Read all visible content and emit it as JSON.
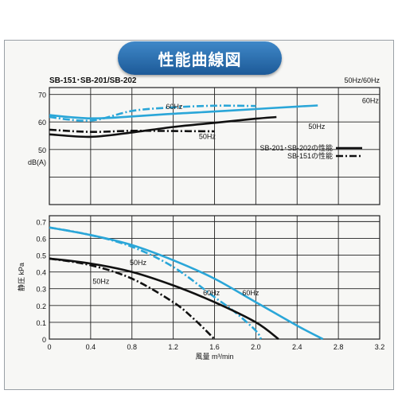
{
  "title": "性能曲線図",
  "model": "SB-151･SB-201/SB-202",
  "freq_note": "50Hz/60Hz",
  "colors": {
    "sb201_202": "#111111",
    "sb151": "#2aa6d8",
    "grid": "#222222",
    "title_bg": "#2e74b5"
  },
  "chart_data": [
    {
      "type": "line",
      "ylabel": "dB(A)",
      "ylim": [
        50,
        70
      ],
      "yticks": [
        50,
        60,
        70
      ],
      "xlim": [
        0,
        3.2
      ],
      "grid": true,
      "legend_position": "right",
      "legend": [
        {
          "label": "SB-201･SB-202の性能",
          "style": "solid",
          "color": "#111111"
        },
        {
          "label": "SB-151の性能",
          "style": "dash-dot",
          "color": "#111111"
        }
      ],
      "annotations": [
        {
          "text": "60Hz",
          "x": 1.21,
          "y": 64.7
        },
        {
          "text": "60Hz",
          "x": 3.11,
          "y": 66.8
        },
        {
          "text": "50Hz",
          "x": 2.59,
          "y": 57.4
        },
        {
          "text": "50Hz",
          "x": 1.53,
          "y": 53.8
        }
      ],
      "series": [
        {
          "model": "SB-201･SB-202",
          "hz": "60Hz",
          "style": "solid",
          "color": "#2aa6d8",
          "x": [
            0,
            0.4,
            0.8,
            1.2,
            1.6,
            2.0,
            2.4,
            2.6
          ],
          "y": [
            62.5,
            61.3,
            62.0,
            63.0,
            63.8,
            64.7,
            65.6,
            66.0
          ]
        },
        {
          "model": "SB-151",
          "hz": "60Hz",
          "style": "dash-dot",
          "color": "#2aa6d8",
          "x": [
            0,
            0.4,
            0.8,
            1.2,
            1.6,
            2.0
          ],
          "y": [
            61.8,
            60.5,
            64.0,
            65.3,
            65.9,
            65.8
          ]
        },
        {
          "model": "SB-201･SB-202",
          "hz": "50Hz",
          "style": "solid",
          "color": "#111111",
          "x": [
            0,
            0.4,
            0.8,
            1.2,
            1.6,
            2.0,
            2.2
          ],
          "y": [
            55.5,
            54.6,
            56.2,
            58.2,
            59.7,
            61.2,
            61.8
          ]
        },
        {
          "model": "SB-151",
          "hz": "50Hz",
          "style": "dash-dot",
          "color": "#111111",
          "x": [
            0,
            0.4,
            0.8,
            1.2,
            1.6
          ],
          "y": [
            57.2,
            56.4,
            56.8,
            56.7,
            56.6
          ]
        }
      ]
    },
    {
      "type": "line",
      "xlabel": "風量 m³/min",
      "ylabel": "静圧 kPa",
      "xlim": [
        0,
        3.2
      ],
      "xticks": [
        0,
        0.4,
        0.8,
        1.2,
        1.6,
        2.0,
        2.4,
        2.8,
        3.2
      ],
      "xtick_labels": [
        "0",
        "0.4",
        "0.8",
        "1.2",
        "1.6",
        "2.0",
        "2.4",
        "2.8",
        "3.2"
      ],
      "ylim": [
        0,
        0.7
      ],
      "yticks": [
        0,
        0.1,
        0.2,
        0.3,
        0.4,
        0.5,
        0.6,
        0.7
      ],
      "grid": true,
      "annotations": [
        {
          "text": "50Hz",
          "x": 0.86,
          "y": 0.44
        },
        {
          "text": "50Hz",
          "x": 0.5,
          "y": 0.33
        },
        {
          "text": "60Hz",
          "x": 1.57,
          "y": 0.26
        },
        {
          "text": "60Hz",
          "x": 1.95,
          "y": 0.26
        }
      ],
      "series": [
        {
          "model": "SB-201･SB-202",
          "hz": "60Hz",
          "style": "solid",
          "color": "#2aa6d8",
          "x": [
            0,
            0.4,
            0.8,
            1.2,
            1.6,
            2.0,
            2.4,
            2.65
          ],
          "y": [
            0.665,
            0.62,
            0.56,
            0.47,
            0.36,
            0.22,
            0.08,
            0.0
          ]
        },
        {
          "model": "SB-151",
          "hz": "60Hz",
          "style": "dash-dot",
          "color": "#2aa6d8",
          "x": [
            0,
            0.4,
            0.8,
            1.2,
            1.6,
            1.8,
            2.0,
            2.05
          ],
          "y": [
            0.665,
            0.62,
            0.55,
            0.43,
            0.25,
            0.16,
            0.05,
            0.0
          ]
        },
        {
          "model": "SB-201･SB-202",
          "hz": "50Hz",
          "style": "solid",
          "color": "#111111",
          "x": [
            0,
            0.4,
            0.8,
            1.2,
            1.6,
            2.0,
            2.22
          ],
          "y": [
            0.48,
            0.45,
            0.4,
            0.32,
            0.22,
            0.1,
            0.0
          ]
        },
        {
          "model": "SB-151",
          "hz": "50Hz",
          "style": "dash-dot",
          "color": "#111111",
          "x": [
            0,
            0.4,
            0.8,
            1.2,
            1.4,
            1.6
          ],
          "y": [
            0.48,
            0.44,
            0.36,
            0.22,
            0.12,
            0.0
          ]
        }
      ]
    }
  ]
}
